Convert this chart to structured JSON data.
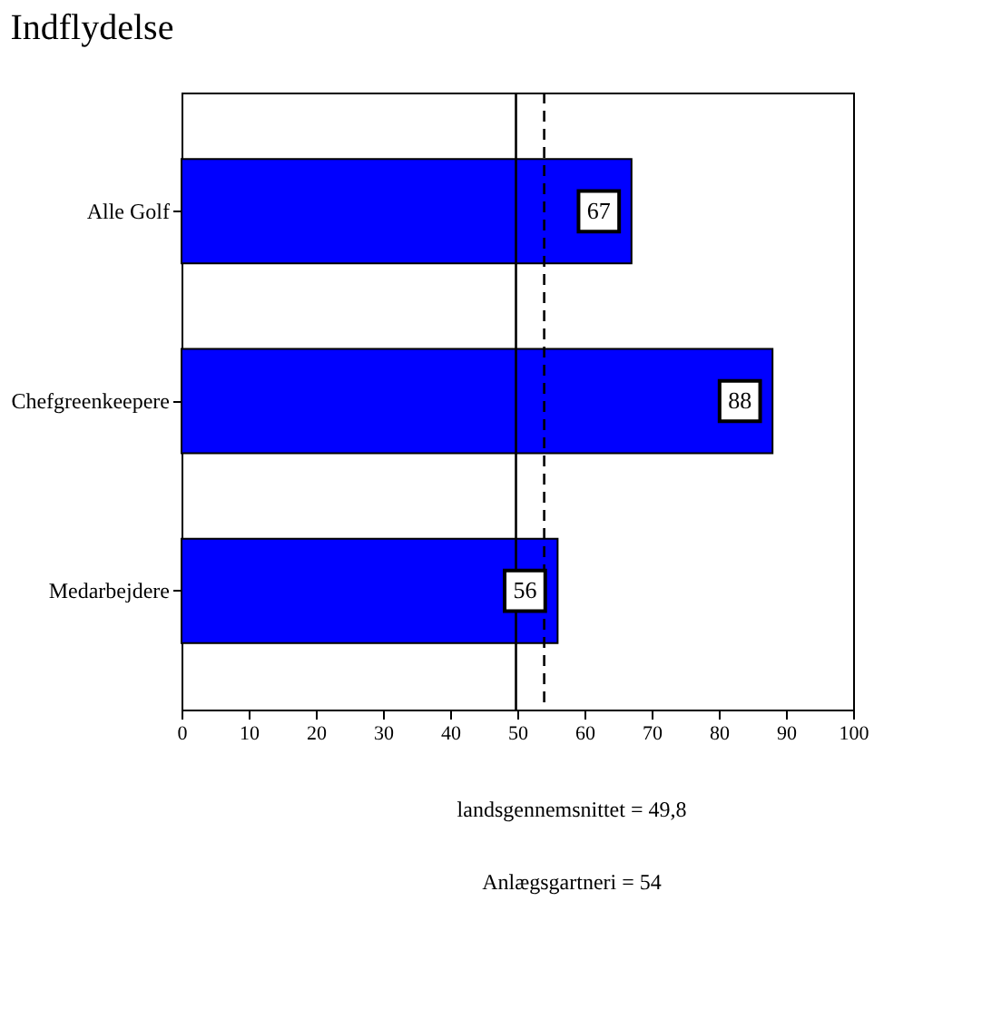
{
  "chart_data": {
    "type": "bar",
    "orientation": "horizontal",
    "title": "Indflydelse",
    "categories": [
      "Alle Golf",
      "Chefgreenkeepere",
      "Medarbejdere"
    ],
    "values": [
      67,
      88,
      56
    ],
    "color": "#0000ff",
    "xlim": [
      0,
      100
    ],
    "xticks": [
      0,
      10,
      20,
      30,
      40,
      50,
      60,
      70,
      80,
      90,
      100
    ],
    "data_labels": true,
    "grid": false,
    "annotations": [
      "landsgennemsnittet = 49,8",
      "Anlægsgartneri = 54"
    ],
    "ref_lines": [
      {
        "axis": "x",
        "value": 49.8,
        "line_style": "solid",
        "color": "#000000"
      },
      {
        "axis": "x",
        "value": 54,
        "line_style": "dashed",
        "color": "#000000"
      }
    ]
  }
}
